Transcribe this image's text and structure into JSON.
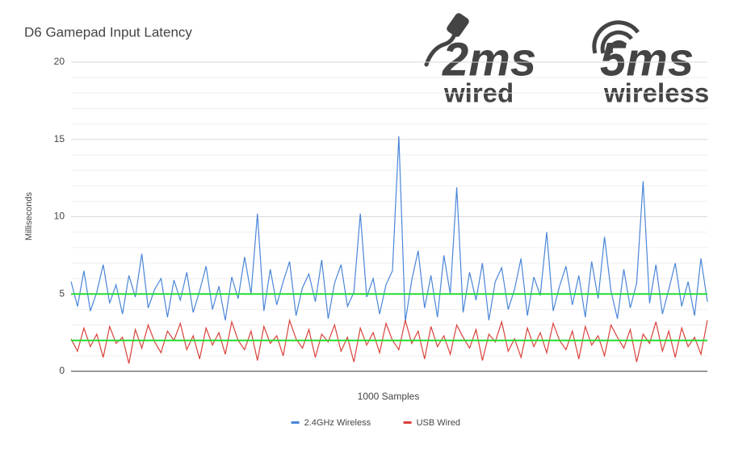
{
  "chart_data": {
    "type": "line",
    "title": "D6 Gamepad Input Latency",
    "xlabel": "1000 Samples",
    "ylabel": "Milliseconds",
    "ylim": [
      0,
      20
    ],
    "yticks": [
      0,
      5,
      10,
      15,
      20
    ],
    "minor_yticks": [
      1,
      2,
      3,
      4,
      6,
      7,
      8,
      9,
      11,
      12,
      13,
      14,
      16,
      17,
      18,
      19
    ],
    "grid": true,
    "legend": "bottom",
    "series": [
      {
        "name": "2.4GHz Wireless",
        "color": "#4a86d8",
        "values": [
          5.8,
          4.2,
          6.5,
          3.9,
          5.1,
          6.9,
          4.4,
          5.6,
          3.7,
          6.2,
          4.8,
          7.6,
          4.1,
          5.3,
          6.0,
          3.5,
          5.9,
          4.6,
          6.4,
          3.8,
          5.2,
          6.8,
          4.0,
          5.5,
          3.3,
          6.1,
          4.7,
          7.4,
          5.0,
          10.2,
          3.9,
          6.6,
          4.3,
          5.8,
          7.1,
          3.6,
          5.4,
          6.3,
          4.5,
          7.2,
          3.4,
          5.7,
          6.9,
          4.2,
          5.1,
          10.2,
          4.8,
          6.0,
          3.7,
          5.6,
          6.5,
          15.2,
          3.2,
          5.9,
          7.8,
          4.1,
          6.2,
          3.5,
          7.5,
          5.0,
          11.9,
          3.8,
          6.4,
          4.6,
          7.0,
          3.3,
          5.8,
          6.7,
          4.0,
          5.3,
          7.3,
          3.6,
          6.1,
          4.9,
          9.0,
          3.9,
          5.5,
          6.8,
          4.3,
          6.2,
          3.5,
          7.1,
          4.7,
          8.7,
          5.2,
          3.4,
          6.6,
          4.1,
          5.7,
          12.3,
          4.4,
          6.9,
          3.7,
          5.3,
          7.0,
          4.2,
          5.8,
          3.6,
          7.3,
          4.5
        ]
      },
      {
        "name": "USB Wired",
        "color": "#d9423a",
        "values": [
          2.1,
          1.3,
          2.8,
          1.6,
          2.4,
          0.9,
          2.9,
          1.8,
          2.2,
          0.5,
          2.7,
          1.5,
          3.0,
          1.9,
          1.2,
          2.6,
          2.0,
          3.1,
          1.4,
          2.3,
          0.8,
          2.8,
          1.7,
          2.5,
          1.1,
          3.2,
          2.0,
          1.4,
          2.6,
          0.7,
          2.9,
          1.8,
          2.3,
          1.0,
          3.3,
          2.1,
          1.5,
          2.7,
          0.9,
          2.4,
          1.9,
          3.0,
          1.3,
          2.2,
          0.6,
          2.8,
          1.7,
          2.5,
          1.2,
          3.1,
          2.0,
          1.4,
          3.3,
          1.8,
          2.6,
          0.8,
          2.9,
          1.6,
          2.3,
          1.1,
          3.0,
          2.2,
          1.5,
          2.7,
          0.7,
          2.4,
          1.9,
          3.2,
          1.3,
          2.1,
          0.9,
          2.8,
          1.6,
          2.5,
          1.2,
          3.1,
          2.0,
          1.4,
          2.6,
          0.8,
          2.9,
          1.7,
          2.3,
          1.0,
          3.0,
          2.2,
          1.5,
          2.7,
          0.6,
          2.4,
          1.8,
          3.2,
          1.3,
          2.6,
          0.9,
          2.8,
          1.6,
          2.2,
          1.1,
          3.3
        ]
      }
    ],
    "reference_lines": [
      {
        "value": 5,
        "color": "#22dd33"
      },
      {
        "value": 2,
        "color": "#22dd33"
      }
    ],
    "badges": [
      {
        "value": "2ms",
        "label": "wired"
      },
      {
        "value": "5ms",
        "label": "wireless"
      }
    ]
  }
}
